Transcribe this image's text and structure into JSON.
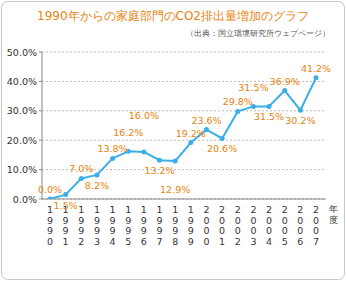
{
  "chart_data": {
    "type": "line",
    "title": "1990年からの家庭部門のCO2排出量増加のグラフ",
    "subtitle": "（出典：国立環境研究所ウェブページ）",
    "x_label": "年度",
    "categories": [
      "1990",
      "1991",
      "1992",
      "1993",
      "1994",
      "1995",
      "1996",
      "1997",
      "1998",
      "1999",
      "2000",
      "2001",
      "2002",
      "2003",
      "2004",
      "2005",
      "2006",
      "2007"
    ],
    "values": [
      0.0,
      1.5,
      7.0,
      8.2,
      13.8,
      16.2,
      16.0,
      13.2,
      12.9,
      19.2,
      23.6,
      20.6,
      29.8,
      31.5,
      31.5,
      36.9,
      30.2,
      41.2
    ],
    "value_labels": [
      "0.0%",
      "1.5%",
      "7.0%",
      "8.2%",
      "13.8%",
      "16.2%",
      "16.0%",
      "13.2%",
      "12.9%",
      "19.2%",
      "23.6%",
      "20.6%",
      "29.8%",
      "31.5%",
      "31.5%",
      "36.9%",
      "30.2%",
      "41.2%"
    ],
    "color": "#3aaee8",
    "marker": "circle",
    "data_labels": true,
    "grid": true,
    "ylim": [
      0,
      50
    ],
    "yticks": [
      {
        "value": 0,
        "label": "0.0%"
      },
      {
        "value": 10,
        "label": "10.0%"
      },
      {
        "value": 20,
        "label": "20.0%"
      },
      {
        "value": 30,
        "label": "30.0%"
      },
      {
        "value": 40,
        "label": "40.0%"
      },
      {
        "value": 50,
        "label": "50.0%"
      }
    ]
  }
}
